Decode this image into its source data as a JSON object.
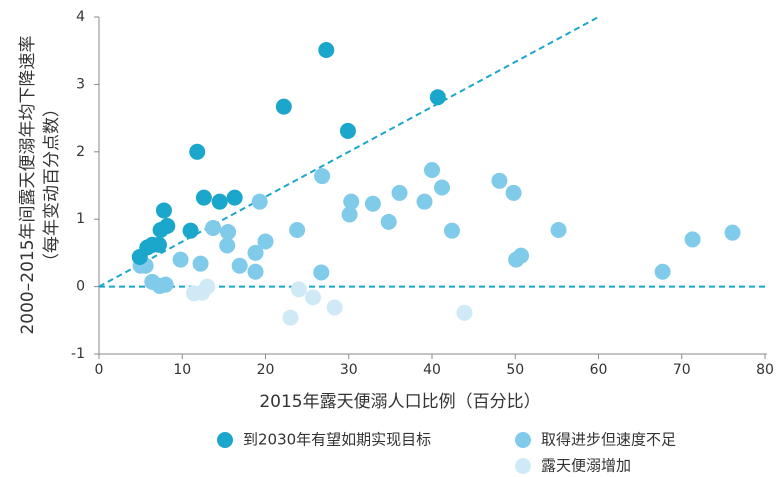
{
  "chart_data": {
    "type": "scatter",
    "x_label": "2015年露天便溺人口比例（百分比）",
    "y_label": [
      "2000–2015年间露天便溺年均下降速率",
      "（每年变动百分点数）"
    ],
    "xlim": [
      0,
      80
    ],
    "ylim": [
      -1,
      4
    ],
    "xticks": [
      0,
      10,
      20,
      30,
      40,
      50,
      60,
      70,
      80
    ],
    "yticks": [
      -1,
      0,
      1,
      2,
      3,
      4
    ],
    "reference_lines": [
      {
        "x": [
          0,
          80
        ],
        "y": [
          0,
          0
        ],
        "color": "#1ba6cc"
      },
      {
        "x": [
          0,
          60
        ],
        "y": [
          0,
          4
        ],
        "color": "#1ba6cc"
      }
    ],
    "series": [
      {
        "name": "到2030年有望如期实现目标",
        "color": "#1ba6cc",
        "x": [
          27.3,
          40.7,
          22.2,
          29.9,
          11.8,
          12.6,
          16.3,
          14.5,
          7.8,
          8.2,
          7.4,
          11.0,
          7.2,
          6.4,
          5.8,
          4.9
        ],
        "y": [
          3.51,
          2.81,
          2.67,
          2.31,
          2.0,
          1.32,
          1.32,
          1.26,
          1.13,
          0.9,
          0.84,
          0.83,
          0.62,
          0.62,
          0.58,
          0.44
        ]
      },
      {
        "name": "取得进步但速度不足",
        "color": "#80cbe9",
        "x": [
          40.0,
          41.2,
          48.1,
          49.8,
          26.8,
          36.1,
          30.3,
          32.9,
          39.1,
          19.3,
          30.1,
          34.8,
          42.4,
          55.2,
          71.3,
          76.1,
          67.7,
          50.7,
          50.1,
          23.8,
          20.0,
          18.8,
          15.5,
          13.7,
          15.4,
          9.8,
          12.2,
          16.9,
          18.8,
          26.7,
          5.6,
          5.0,
          6.4,
          8.0,
          7.3
        ],
        "y": [
          1.73,
          1.47,
          1.57,
          1.39,
          1.64,
          1.39,
          1.26,
          1.23,
          1.26,
          1.26,
          1.07,
          0.96,
          0.83,
          0.84,
          0.7,
          0.8,
          0.22,
          0.46,
          0.4,
          0.84,
          0.67,
          0.5,
          0.81,
          0.87,
          0.61,
          0.4,
          0.34,
          0.31,
          0.22,
          0.21,
          0.31,
          0.31,
          0.07,
          0.03,
          0.01
        ]
      },
      {
        "name": "露天便溺增加",
        "color": "#cfeaf6",
        "x": [
          23.0,
          43.9,
          28.3,
          25.7,
          24.0,
          13.0,
          11.4,
          12.4
        ],
        "y": [
          -0.46,
          -0.39,
          -0.31,
          -0.16,
          -0.04,
          0.0,
          -0.1,
          -0.09
        ]
      }
    ]
  }
}
